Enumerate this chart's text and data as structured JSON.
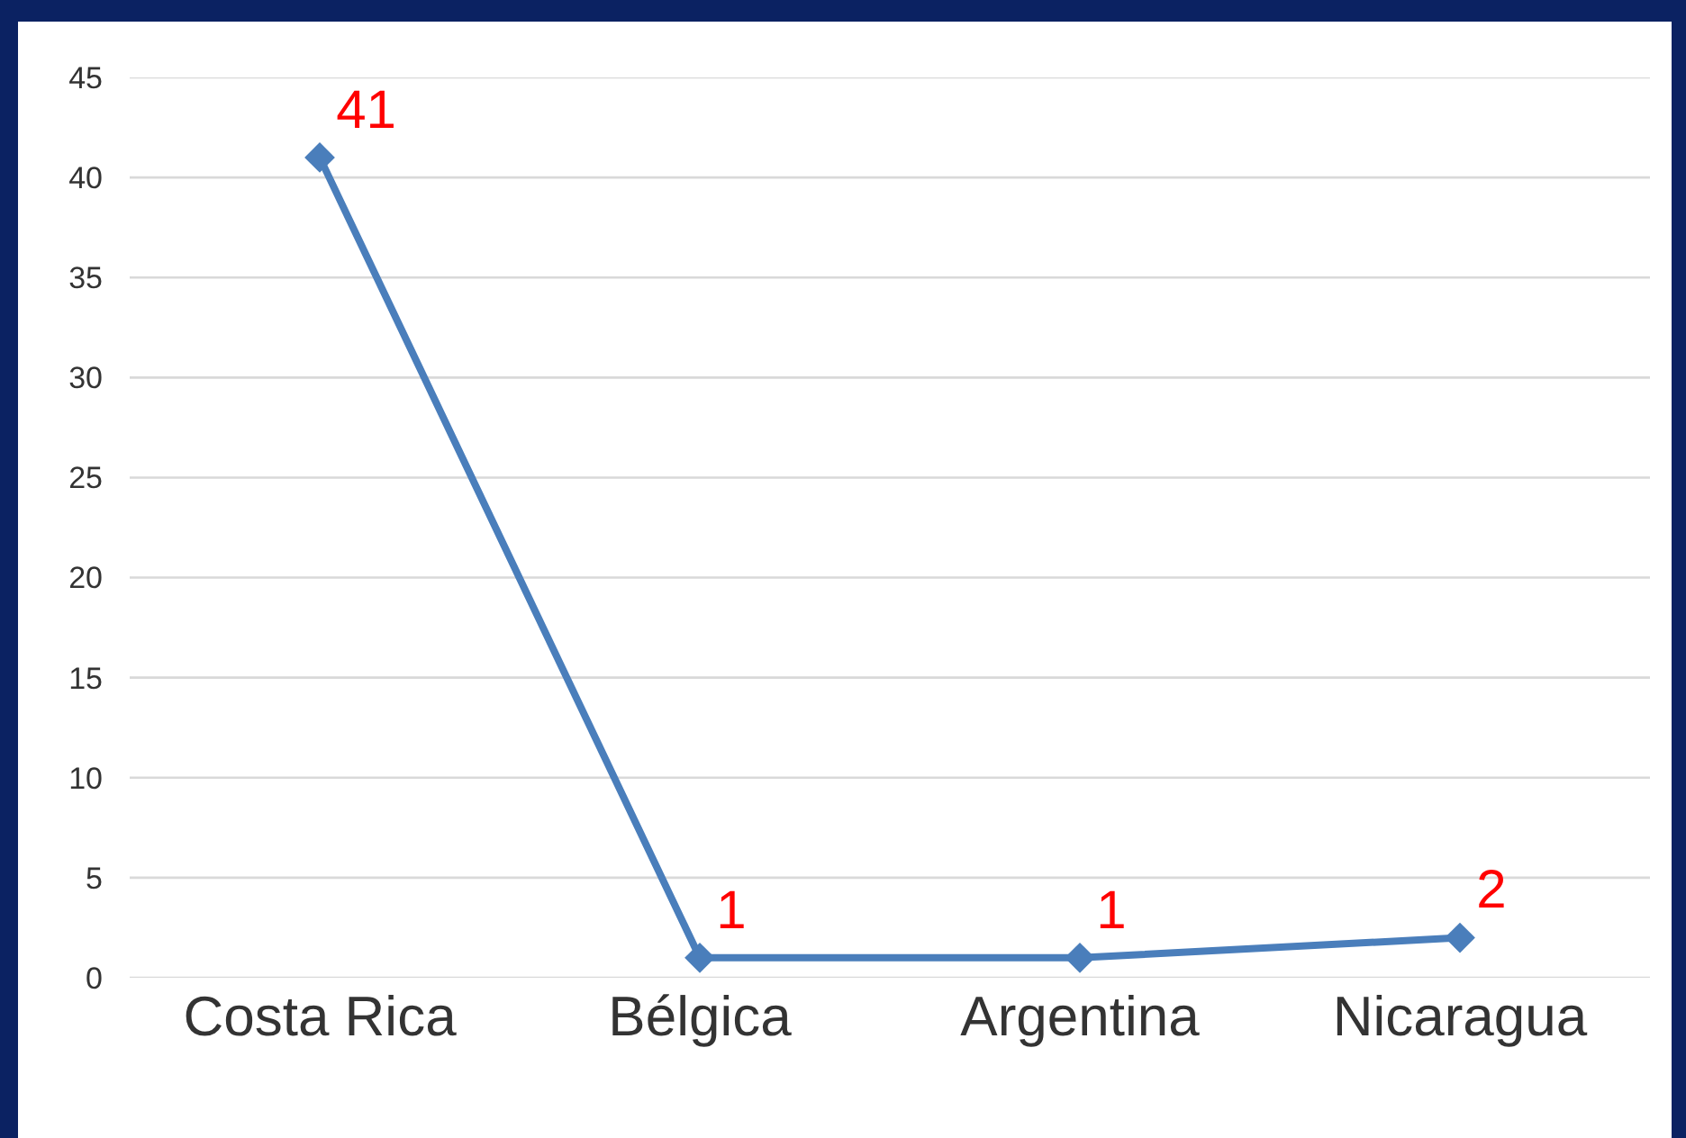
{
  "chart_data": {
    "type": "line",
    "categories": [
      "Costa Rica",
      "Bélgica",
      "Argentina",
      "Nicaragua"
    ],
    "series": [
      {
        "color": "#4a7ebb",
        "values": [
          41,
          1,
          1,
          2
        ]
      }
    ],
    "ylim": [
      0,
      45
    ],
    "yticks": [
      0,
      5,
      10,
      15,
      20,
      25,
      30,
      35,
      40,
      45
    ],
    "grid": "y",
    "marker": "diamond",
    "line_style": "solid",
    "data_labels": true
  }
}
